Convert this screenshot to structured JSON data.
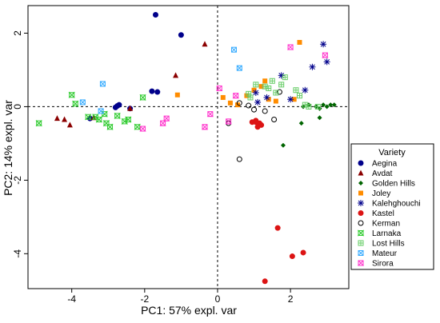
{
  "chart_data": {
    "type": "scatter",
    "xlabel": "PC1: 57% expl. var",
    "ylabel": "PC2: 14% expl. var",
    "xlim": [
      -5.2,
      3.6
    ],
    "ylim": [
      -4.95,
      2.75
    ],
    "xticks": [
      -4,
      -2,
      0,
      2
    ],
    "yticks": [
      -4,
      -2,
      0,
      2
    ],
    "xtick_labels": [
      "-4",
      "-2",
      "0",
      "2"
    ],
    "ytick_labels": [
      "-4",
      "-2",
      "0",
      "2"
    ],
    "reference_lines": {
      "x": 0,
      "y": 0,
      "style": "dashed"
    },
    "grid": false,
    "legend": {
      "title": "Variety",
      "position": "right"
    },
    "series": [
      {
        "name": "Aegina",
        "marker": "circle",
        "color": "#00008b",
        "x": [
          -1.7,
          -1.0,
          -2.8,
          -2.75,
          -2.7,
          -1.8,
          -1.65,
          -3.5,
          -2.4
        ],
        "y": [
          2.5,
          1.95,
          -0.02,
          0.02,
          0.05,
          0.42,
          0.4,
          -0.32,
          -0.05
        ]
      },
      {
        "name": "Avdat",
        "marker": "triangle",
        "color": "#8b0000",
        "x": [
          -0.35,
          -1.15,
          -4.4,
          -4.2,
          -4.05,
          -3.4,
          -2.4
        ],
        "y": [
          1.7,
          0.85,
          -0.32,
          -0.35,
          -0.5,
          -0.3,
          -0.05
        ]
      },
      {
        "name": "Golden Hills",
        "marker": "diamond",
        "color": "#006400",
        "x": [
          2.35,
          2.5,
          2.7,
          2.8,
          2.9,
          3.0,
          3.1,
          3.2,
          2.3,
          2.8,
          1.8
        ],
        "y": [
          0.0,
          0.05,
          0.0,
          -0.05,
          0.05,
          0.0,
          0.05,
          0.05,
          -0.45,
          -0.3,
          -1.05
        ]
      },
      {
        "name": "Joley",
        "marker": "square",
        "color": "#ff8c00",
        "x": [
          -1.1,
          0.15,
          0.35,
          0.55,
          0.8,
          1.0,
          1.2,
          1.3,
          1.4,
          1.6,
          2.1,
          2.25
        ],
        "y": [
          0.32,
          0.25,
          0.1,
          0.05,
          0.3,
          0.45,
          0.55,
          0.7,
          0.2,
          0.15,
          0.2,
          1.75
        ]
      },
      {
        "name": "Kalehghouchi",
        "marker": "asterisk",
        "color": "#00008b",
        "x": [
          2.9,
          3.0,
          2.6,
          2.4,
          1.75,
          2.0,
          1.05,
          1.35,
          1.1
        ],
        "y": [
          1.7,
          1.22,
          1.08,
          0.45,
          0.85,
          0.2,
          0.38,
          0.25,
          0.12
        ]
      },
      {
        "name": "Kastel",
        "marker": "circle",
        "color": "#dc1414",
        "x": [
          0.95,
          1.05,
          1.15,
          1.2,
          1.1,
          1.05,
          1.65,
          2.35,
          2.05,
          1.3
        ],
        "y": [
          -0.42,
          -0.38,
          -0.45,
          -0.5,
          -0.55,
          -0.42,
          -3.3,
          -3.97,
          -4.07,
          -4.75
        ]
      },
      {
        "name": "Kerman",
        "marker": "open-circle",
        "color": "#000000",
        "x": [
          0.6,
          0.85,
          1.0,
          1.3,
          1.55,
          1.7,
          0.6,
          0.3
        ],
        "y": [
          0.1,
          0.03,
          -0.08,
          -0.12,
          -0.35,
          0.4,
          -1.43,
          -0.45
        ]
      },
      {
        "name": "Larnaka",
        "marker": "hourglass",
        "color": "#33cc33",
        "x": [
          -4.9,
          -4.0,
          -3.9,
          -3.55,
          -3.35,
          -3.25,
          -3.1,
          -3.05,
          -2.95,
          -2.75,
          -2.55,
          -2.45,
          -2.2,
          -2.05
        ],
        "y": [
          -0.45,
          0.32,
          0.08,
          -0.28,
          -0.28,
          -0.35,
          -0.2,
          -0.45,
          -0.55,
          -0.25,
          -0.4,
          -0.35,
          -0.55,
          0.25
        ]
      },
      {
        "name": "Lost Hills",
        "marker": "boxplus",
        "color": "#66cc66",
        "x": [
          0.85,
          1.05,
          1.3,
          1.4,
          1.5,
          1.6,
          1.75,
          1.85,
          2.15,
          2.25,
          2.4,
          2.5,
          2.75,
          0.9
        ],
        "y": [
          0.35,
          0.6,
          0.55,
          0.5,
          0.7,
          0.38,
          0.6,
          0.8,
          0.45,
          0.3,
          0.05,
          0.0,
          0.0,
          0.25
        ]
      },
      {
        "name": "Mateur",
        "marker": "boxcross",
        "color": "#33aaff",
        "x": [
          -3.15,
          -3.2,
          -3.7,
          0.45,
          0.6
        ],
        "y": [
          0.62,
          -0.12,
          0.12,
          1.55,
          1.05
        ]
      },
      {
        "name": "Sirora",
        "marker": "boxhourglass",
        "color": "#ff33cc",
        "x": [
          -1.4,
          -2.05,
          -0.35,
          -0.2,
          0.3,
          2.0,
          2.95,
          -1.5,
          0.05,
          0.5
        ],
        "y": [
          -0.32,
          -0.6,
          -0.55,
          -0.2,
          -0.4,
          1.62,
          1.4,
          -0.45,
          0.5,
          0.3
        ]
      }
    ]
  }
}
